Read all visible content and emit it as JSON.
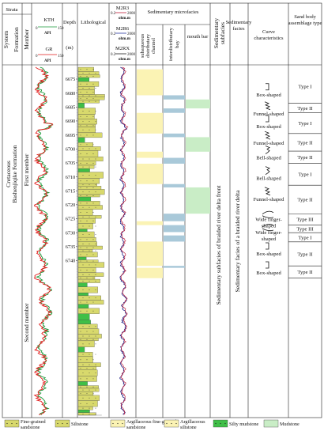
{
  "headers": {
    "strata": "Strata",
    "system": "System",
    "formation": "Formation",
    "member": "Member",
    "depth": "Depth",
    "depth_unit": "(m)",
    "lithological": "Lithological",
    "microfacies": "Sedimentary microfacies",
    "subfacies": "Sedimentary subfacies",
    "facies": "Sedimentary facies",
    "curve": "Curve characteristics",
    "sandbody": "Sand body assemblage type"
  },
  "log_tracks": {
    "kth": {
      "name": "KTH",
      "unit": "API",
      "min": "0",
      "max": "150"
    },
    "gr": {
      "name": "GR",
      "unit": "API",
      "min": "0",
      "max": "150"
    },
    "m2r3": {
      "name": "M2R3",
      "unit": "ohm.m",
      "min": "0.2",
      "max": "2000"
    },
    "m2r6": {
      "name": "M2R6",
      "unit": "ohm.m",
      "min": "0.2",
      "max": "2000"
    },
    "m2rx": {
      "name": "M2RX",
      "unit": "ohm.m",
      "min": "0.2",
      "max": "2000"
    }
  },
  "microfacies_cols": [
    "subaqueous distributary channel",
    "interdistributary bay",
    "mouth bar"
  ],
  "strata_text": {
    "system": "Cretaceous",
    "formation": "Bashenjiqike Formation",
    "first_member": "First member",
    "second_member": "Second member",
    "subfacies": "Sedimentary subfacies of braided river delta front",
    "facies": "Sedimentary facies of a braided river delta"
  },
  "depth_ticks": [
    "6675",
    "6680",
    "6685",
    "6690",
    "6695",
    "6700",
    "6705",
    "6710",
    "6715",
    "6720",
    "6725",
    "6730",
    "6735",
    "6740"
  ],
  "curve_shapes": [
    {
      "label": "Box-shaped",
      "depth": 6680.6
    },
    {
      "label": "Funnel-shaped",
      "depth": 6687.4
    },
    {
      "label": "Box-shaped",
      "depth": 6692.0
    },
    {
      "label": "Funnel-shaped",
      "depth": 6698.0
    },
    {
      "label": "Bell-shaped",
      "depth": 6703.2
    },
    {
      "label": "Bell-shaped",
      "depth": 6710.6
    },
    {
      "label": "Funnel-shaped",
      "depth": 6718.0
    },
    {
      "label": "Wide finger-shaped",
      "depth": 6726.2
    },
    {
      "label": "Wide finger-shaped",
      "depth": 6730.8
    },
    {
      "label": "Box-shaped",
      "depth": 6737.6
    },
    {
      "label": "Box-shaped",
      "depth": 6744.4
    }
  ],
  "sandbody_types": [
    {
      "label": "Type I",
      "from": 6671.5,
      "to": 6683.6
    },
    {
      "label": "Type II",
      "from": 6683.6,
      "to": 6687.1
    },
    {
      "label": "Type I",
      "from": 6687.1,
      "to": 6694.5
    },
    {
      "label": "Type II",
      "from": 6694.5,
      "to": 6700.8
    },
    {
      "label": "Type II",
      "from": 6700.8,
      "to": 6705.2
    },
    {
      "label": "Type I",
      "from": 6705.2,
      "to": 6713.0
    },
    {
      "label": "Type II",
      "from": 6713.0,
      "to": 6723.3
    },
    {
      "label": "Type III",
      "from": 6723.3,
      "to": 6727.2
    },
    {
      "label": "Type III",
      "from": 6727.2,
      "to": 6730.0
    },
    {
      "label": "Type I",
      "from": 6730.0,
      "to": 6733.3
    },
    {
      "label": "Type II",
      "from": 6733.3,
      "to": 6741.9
    },
    {
      "label": "Type II",
      "from": 6741.9,
      "to": 6746.3
    }
  ],
  "microfacies_intervals": [
    {
      "type": "channel",
      "from": 6671.5,
      "to": 6680.8
    },
    {
      "type": "bay",
      "from": 6680.8,
      "to": 6682.3
    },
    {
      "type": "mouthbar",
      "from": 6682.3,
      "to": 6685.5
    },
    {
      "type": "bay",
      "from": 6685.5,
      "to": 6687.1
    },
    {
      "type": "channel",
      "from": 6687.1,
      "to": 6694.5
    },
    {
      "type": "bay",
      "from": 6694.5,
      "to": 6695.8
    },
    {
      "type": "mouthbar",
      "from": 6695.8,
      "to": 6701.0
    },
    {
      "type": "channel",
      "from": 6701.0,
      "to": 6703.2
    },
    {
      "type": "bay",
      "from": 6703.2,
      "to": 6705.3
    },
    {
      "type": "channel",
      "from": 6705.3,
      "to": 6712.6
    },
    {
      "type": "bay",
      "from": 6712.6,
      "to": 6713.8
    },
    {
      "type": "mouthbar",
      "from": 6713.8,
      "to": 6723.2
    },
    {
      "type": "bay",
      "from": 6723.2,
      "to": 6725.9
    },
    {
      "type": "channel",
      "from": 6725.9,
      "to": 6727.3
    },
    {
      "type": "bay",
      "from": 6727.3,
      "to": 6729.8
    },
    {
      "type": "bay",
      "from": 6731.0,
      "to": 6733.2
    },
    {
      "type": "channel",
      "from": 6733.2,
      "to": 6741.9
    },
    {
      "type": "bay",
      "from": 6741.9,
      "to": 6742.6
    },
    {
      "type": "channel",
      "from": 6742.6,
      "to": 6746.3
    }
  ],
  "legend": [
    {
      "kind": "fine",
      "label": "Fine-grained sandstone"
    },
    {
      "kind": "silt",
      "label": "Siltstone"
    },
    {
      "kind": "argfine",
      "label": "Argillaceous fine-grained sandstone"
    },
    {
      "kind": "argsilt",
      "label": "Argillaceous siltstone"
    },
    {
      "kind": "siltymud",
      "label": "Silty mudstone"
    },
    {
      "kind": "mud",
      "label": "Mudstone"
    }
  ],
  "colors": {
    "sand": "#d8d96c",
    "silt_green": "#3fbf47",
    "channel_fill": "#fbf3b4",
    "bay_fill": "#a9c9d9",
    "mouthbar_fill": "#c9edc6",
    "gr_curve": "#e31b1b",
    "kth_curve": "#1a9a3a",
    "res_curve_1": "#1a1a80",
    "res_curve_2": "#c0203c"
  }
}
